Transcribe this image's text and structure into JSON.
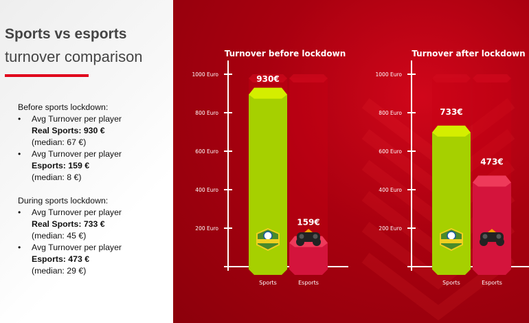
{
  "title_line1": "Sports vs esports",
  "title_line2": "turnover comparison",
  "notes": [
    {
      "heading": "Before sports lockdown:",
      "items": [
        {
          "line": "Avg Turnover per player",
          "bold": "Real Sports: 930 €",
          "median": "(median: 67 €)"
        },
        {
          "line": "Avg Turnover per player",
          "bold": "Esports: 159 €",
          "median": "(median: 8 €)"
        }
      ]
    },
    {
      "heading": "During sports lockdown:",
      "items": [
        {
          "line": "Avg Turnover per player",
          "bold": "Real Sports: 733 €",
          "median": "(median: 45 €)"
        },
        {
          "line": "Avg Turnover per player",
          "bold": "Esports: 473 €",
          "median": "(median: 29 €)"
        }
      ]
    }
  ],
  "colors": {
    "accent": "#e0001b",
    "sports": "#a6d000",
    "esports": "#d4143c",
    "background": "#a8000f"
  },
  "chart_data": [
    {
      "type": "bar",
      "title": "Turnover before lockdown",
      "categories": [
        "Sports",
        "Esports"
      ],
      "values": [
        930,
        159
      ],
      "data_labels": [
        "930€",
        "159€"
      ],
      "yticks": [
        200,
        400,
        600,
        800,
        1000
      ],
      "ytick_labels": [
        "200 Euro",
        "400 Euro",
        "600 Euro",
        "800 Euro",
        "1000 Euro"
      ],
      "ylim": [
        0,
        1000
      ],
      "icons": [
        "all-sports-badge-icon",
        "gamepad-icon"
      ]
    },
    {
      "type": "bar",
      "title": "Turnover after lockdown",
      "categories": [
        "Sports",
        "Esports"
      ],
      "values": [
        733,
        473
      ],
      "data_labels": [
        "733€",
        "473€"
      ],
      "yticks": [
        200,
        400,
        600,
        800,
        1000
      ],
      "ytick_labels": [
        "200 Euro",
        "400 Euro",
        "600 Euro",
        "800 Euro",
        "1000 Euro"
      ],
      "ylim": [
        0,
        1000
      ],
      "icons": [
        "all-sports-badge-icon",
        "gamepad-icon"
      ]
    }
  ]
}
